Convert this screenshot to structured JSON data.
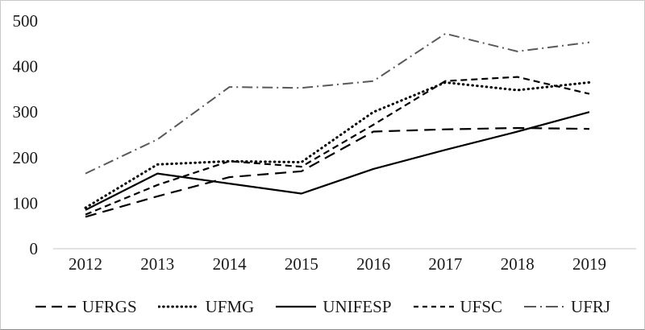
{
  "chart_data": {
    "type": "line",
    "title": "",
    "xlabel": "",
    "ylabel": "",
    "categories": [
      "2012",
      "2013",
      "2014",
      "2015",
      "2016",
      "2017",
      "2018",
      "2019"
    ],
    "yticks": [
      "0",
      "100",
      "200",
      "300",
      "400",
      "500"
    ],
    "ylim": [
      0,
      500
    ],
    "grid": false,
    "legend_position": "bottom",
    "axis_line_color": "#d9d9d9",
    "series": [
      {
        "name": "UFRGS",
        "style": "long-dash",
        "color": "#000000",
        "values": [
          70,
          115,
          157,
          170,
          257,
          262,
          265,
          263
        ]
      },
      {
        "name": "UFMG",
        "style": "dotted",
        "color": "#000000",
        "values": [
          90,
          185,
          192,
          190,
          300,
          365,
          348,
          365
        ]
      },
      {
        "name": "UNIFESP",
        "style": "solid",
        "color": "#000000",
        "values": [
          85,
          165,
          143,
          121,
          175,
          217,
          257,
          300
        ]
      },
      {
        "name": "UFSC",
        "style": "dash",
        "color": "#000000",
        "values": [
          75,
          140,
          192,
          180,
          272,
          368,
          377,
          340
        ]
      },
      {
        "name": "UFRJ",
        "style": "dash-dot",
        "color": "#595959",
        "values": [
          165,
          240,
          355,
          353,
          368,
          472,
          433,
          453
        ]
      }
    ]
  }
}
